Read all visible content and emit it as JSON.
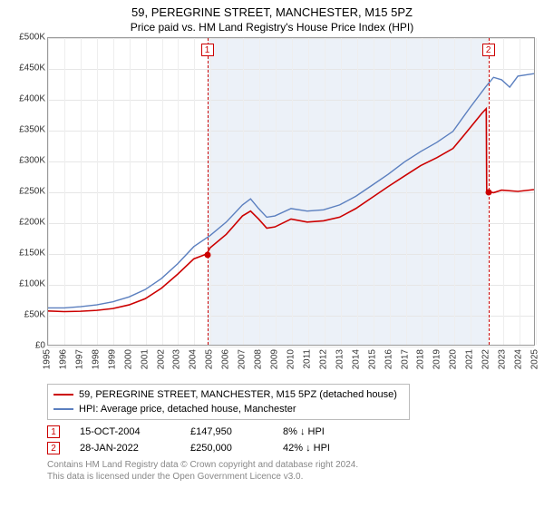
{
  "title": "59, PEREGRINE STREET, MANCHESTER, M15 5PZ",
  "subtitle": "Price paid vs. HM Land Registry's House Price Index (HPI)",
  "chart": {
    "type": "line",
    "background_color": "#ffffff",
    "grid_color_h": "#e6e6e6",
    "grid_color_v": "#eeeeee",
    "axis_color": "#999999",
    "tick_fontsize": 10,
    "x": {
      "min": 1995,
      "max": 2025,
      "step": 1
    },
    "y": {
      "min": 0,
      "max": 500000,
      "step": 50000,
      "prefix": "£",
      "format": "k"
    },
    "shade": {
      "from": 2004.79,
      "to": 2022.08,
      "color": "#e9eef7"
    },
    "series": [
      {
        "key": "property",
        "label": "59, PEREGRINE STREET, MANCHESTER, M15 5PZ (detached house)",
        "color": "#cc0000",
        "width": 1.6,
        "data": [
          [
            1995,
            55000
          ],
          [
            1996,
            54000
          ],
          [
            1997,
            54500
          ],
          [
            1998,
            56000
          ],
          [
            1999,
            59000
          ],
          [
            2000,
            65000
          ],
          [
            2001,
            75000
          ],
          [
            2002,
            92000
          ],
          [
            2003,
            115000
          ],
          [
            2004,
            140000
          ],
          [
            2004.79,
            147950
          ],
          [
            2005,
            158000
          ],
          [
            2006,
            180000
          ],
          [
            2007,
            210000
          ],
          [
            2007.5,
            218000
          ],
          [
            2008,
            205000
          ],
          [
            2008.5,
            190000
          ],
          [
            2009,
            192000
          ],
          [
            2010,
            205000
          ],
          [
            2011,
            200000
          ],
          [
            2012,
            202000
          ],
          [
            2013,
            208000
          ],
          [
            2014,
            222000
          ],
          [
            2015,
            240000
          ],
          [
            2016,
            258000
          ],
          [
            2017,
            275000
          ],
          [
            2018,
            292000
          ],
          [
            2019,
            305000
          ],
          [
            2020,
            320000
          ],
          [
            2021,
            352000
          ],
          [
            2021.8,
            378000
          ],
          [
            2022.05,
            385000
          ],
          [
            2022.08,
            250000
          ],
          [
            2022.5,
            248000
          ],
          [
            2023,
            252000
          ],
          [
            2024,
            250000
          ],
          [
            2025,
            253000
          ]
        ]
      },
      {
        "key": "hpi",
        "label": "HPI: Average price, detached house, Manchester",
        "color": "#5b7fbf",
        "width": 1.4,
        "data": [
          [
            1995,
            60000
          ],
          [
            1996,
            60000
          ],
          [
            1997,
            62000
          ],
          [
            1998,
            65000
          ],
          [
            1999,
            70000
          ],
          [
            2000,
            78000
          ],
          [
            2001,
            90000
          ],
          [
            2002,
            108000
          ],
          [
            2003,
            132000
          ],
          [
            2004,
            160000
          ],
          [
            2005,
            178000
          ],
          [
            2006,
            200000
          ],
          [
            2007,
            228000
          ],
          [
            2007.5,
            238000
          ],
          [
            2008,
            222000
          ],
          [
            2008.5,
            208000
          ],
          [
            2009,
            210000
          ],
          [
            2010,
            222000
          ],
          [
            2011,
            218000
          ],
          [
            2012,
            220000
          ],
          [
            2013,
            228000
          ],
          [
            2014,
            242000
          ],
          [
            2015,
            260000
          ],
          [
            2016,
            278000
          ],
          [
            2017,
            298000
          ],
          [
            2018,
            315000
          ],
          [
            2019,
            330000
          ],
          [
            2020,
            348000
          ],
          [
            2021,
            385000
          ],
          [
            2022,
            420000
          ],
          [
            2022.5,
            436000
          ],
          [
            2023,
            432000
          ],
          [
            2023.5,
            420000
          ],
          [
            2024,
            438000
          ],
          [
            2025,
            442000
          ]
        ]
      }
    ],
    "events": [
      {
        "n": "1",
        "x": 2004.79,
        "color": "#cc0000",
        "dot_y": 147950
      },
      {
        "n": "2",
        "x": 2022.08,
        "color": "#cc0000",
        "dot_y": 250000
      }
    ]
  },
  "legend": {
    "items": [
      {
        "color": "#cc0000",
        "label": "59, PEREGRINE STREET, MANCHESTER, M15 5PZ (detached house)"
      },
      {
        "color": "#5b7fbf",
        "label": "HPI: Average price, detached house, Manchester"
      }
    ]
  },
  "event_table": {
    "rows": [
      {
        "n": "1",
        "color": "#cc0000",
        "date": "15-OCT-2004",
        "price": "£147,950",
        "pct": "8%",
        "dir": "↓",
        "ref": "HPI"
      },
      {
        "n": "2",
        "color": "#cc0000",
        "date": "28-JAN-2022",
        "price": "£250,000",
        "pct": "42%",
        "dir": "↓",
        "ref": "HPI"
      }
    ]
  },
  "attribution": {
    "line1": "Contains HM Land Registry data © Crown copyright and database right 2024.",
    "line2": "This data is licensed under the Open Government Licence v3.0."
  }
}
